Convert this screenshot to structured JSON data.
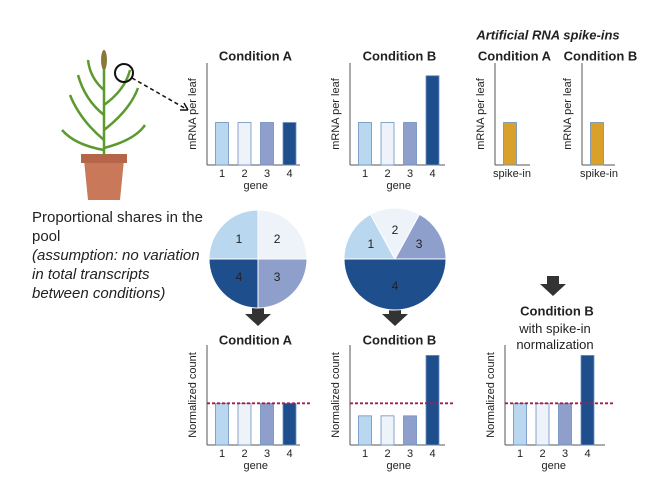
{
  "texts": {
    "header": "Artificial RNA spike-ins",
    "caption": "Proportional shares in the pool",
    "note": "(assumption: no variation in total transcripts between conditions)"
  },
  "chart_data": [
    {
      "type": "bar",
      "title": "Condition A",
      "ylabel": "mRNA per leaf",
      "xlabel": "gene",
      "categories": [
        "1",
        "2",
        "3",
        "4"
      ],
      "values": [
        1,
        1,
        1,
        1
      ],
      "colors": [
        "#b9d7ee",
        "#eef2f9",
        "#8f9fcc",
        "#1f4e8c"
      ],
      "ylim": [
        0,
        2.4
      ]
    },
    {
      "type": "bar",
      "title": "Condition B",
      "ylabel": "mRNA per leaf",
      "xlabel": "gene",
      "categories": [
        "1",
        "2",
        "3",
        "4"
      ],
      "values": [
        1,
        1,
        1,
        2.1
      ],
      "colors": [
        "#b9d7ee",
        "#eef2f9",
        "#8f9fcc",
        "#1f4e8c"
      ],
      "ylim": [
        0,
        2.4
      ]
    },
    {
      "type": "bar",
      "title": "Condition A",
      "ylabel": "mRNA per leaf",
      "categories": [
        "spike-in"
      ],
      "values": [
        1
      ],
      "colors": [
        "#d9a12a"
      ],
      "ylim": [
        0,
        2.4
      ]
    },
    {
      "type": "bar",
      "title": "Condition B",
      "ylabel": "mRNA per leaf",
      "categories": [
        "spike-in"
      ],
      "values": [
        1
      ],
      "colors": [
        "#d9a12a"
      ],
      "ylim": [
        0,
        2.4
      ]
    },
    {
      "type": "pie",
      "categories": [
        "1",
        "2",
        "3",
        "4"
      ],
      "values": [
        25,
        25,
        25,
        25
      ],
      "colors": [
        "#b9d7ee",
        "#eef2f9",
        "#8f9fcc",
        "#1f4e8c"
      ]
    },
    {
      "type": "pie",
      "categories": [
        "1",
        "2",
        "3",
        "4"
      ],
      "values": [
        17,
        16,
        17,
        50
      ],
      "colors": [
        "#b9d7ee",
        "#eef2f9",
        "#8f9fcc",
        "#1f4e8c"
      ]
    },
    {
      "type": "bar",
      "title": "Condition A",
      "ylabel": "Normalized count",
      "xlabel": "gene",
      "categories": [
        "1",
        "2",
        "3",
        "4"
      ],
      "values": [
        1,
        1,
        1,
        1
      ],
      "colors": [
        "#b9d7ee",
        "#eef2f9",
        "#8f9fcc",
        "#1f4e8c"
      ],
      "ylim": [
        0,
        2.4
      ],
      "reference_line": 1,
      "reference_color": "#a0204a"
    },
    {
      "type": "bar",
      "title": "Condition B",
      "ylabel": "Normalized count",
      "xlabel": "gene",
      "categories": [
        "1",
        "2",
        "3",
        "4"
      ],
      "values": [
        0.7,
        0.7,
        0.7,
        2.15
      ],
      "colors": [
        "#b9d7ee",
        "#eef2f9",
        "#8f9fcc",
        "#1f4e8c"
      ],
      "ylim": [
        0,
        2.4
      ],
      "reference_line": 1,
      "reference_color": "#a0204a"
    },
    {
      "type": "bar",
      "title": "Condition B",
      "subtitle": "with spike-in normalization",
      "ylabel": "Normalized count",
      "xlabel": "gene",
      "categories": [
        "1",
        "2",
        "3",
        "4"
      ],
      "values": [
        1,
        1,
        1,
        2.15
      ],
      "colors": [
        "#b9d7ee",
        "#eef2f9",
        "#8f9fcc",
        "#1f4e8c"
      ],
      "ylim": [
        0,
        2.4
      ],
      "reference_line": 1,
      "reference_color": "#a0204a"
    }
  ]
}
